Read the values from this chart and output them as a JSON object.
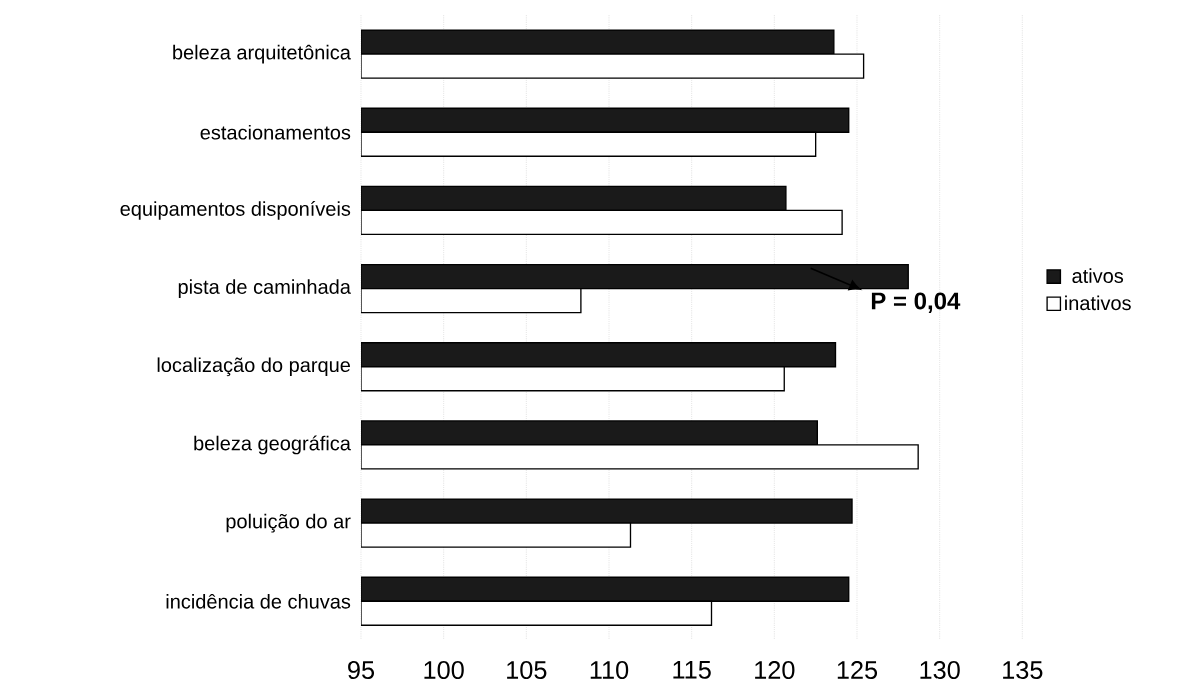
{
  "chart_data": {
    "type": "bar",
    "orientation": "horizontal",
    "categories": [
      "beleza arquitetônica",
      "estacionamentos",
      "equipamentos disponíveis",
      "pista de caminhada",
      "localização do parque",
      "beleza geográfica",
      "poluição do ar",
      "incidência de chuvas"
    ],
    "series": [
      {
        "name": "ativos",
        "color": "#1a1a1a",
        "values": [
          123.6,
          124.5,
          120.7,
          128.1,
          123.7,
          122.6,
          124.7,
          124.5
        ]
      },
      {
        "name": "inativos",
        "color": "#ffffff",
        "values": [
          125.4,
          122.5,
          124.1,
          108.3,
          120.6,
          128.7,
          111.3,
          116.2
        ]
      }
    ],
    "xlim": [
      95,
      135
    ],
    "xticks": [
      95,
      100,
      105,
      110,
      115,
      120,
      125,
      130,
      135
    ],
    "grid": "x",
    "legend": "right",
    "annotations": [
      "P = 0,04"
    ]
  }
}
